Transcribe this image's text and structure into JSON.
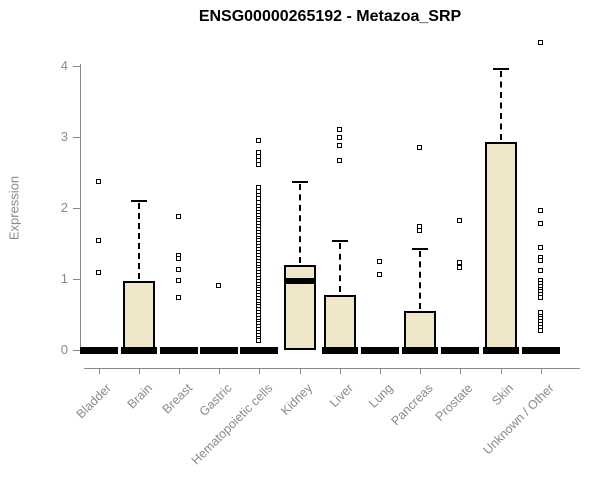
{
  "chart_data": {
    "type": "boxplot",
    "title": "ENSG00000265192 - Metazoa_SRP",
    "xlabel": "",
    "ylabel": "Expression",
    "ylim": [
      0,
      4.4
    ],
    "yticks": [
      0,
      1,
      2,
      3,
      4
    ],
    "grid": false,
    "legend": "none",
    "colors": {
      "box_fill": "#efe7c8",
      "box_border": "#000000",
      "median": "#000000",
      "outlier": "#000000",
      "axis": "#8a8a8a",
      "tick_label": "#8a8a8a",
      "title": "#000000"
    },
    "categories": [
      "Bladder",
      "Brain",
      "Breast",
      "Gastric",
      "Hematopoietic cells",
      "Kidney",
      "Liver",
      "Lung",
      "Pancreas",
      "Prostate",
      "Skin",
      "Unknown / Other"
    ],
    "boxes": [
      {
        "category": "Bladder",
        "q1": 0,
        "median": 0,
        "q3": 0,
        "whisker_low": 0,
        "whisker_high": 0,
        "outliers": [
          2.36,
          1.53,
          1.08
        ]
      },
      {
        "category": "Brain",
        "q1": 0,
        "median": 0,
        "q3": 0.97,
        "whisker_low": 0,
        "whisker_high": 2.1,
        "outliers": []
      },
      {
        "category": "Breast",
        "q1": 0,
        "median": 0,
        "q3": 0,
        "whisker_low": 0,
        "whisker_high": 0,
        "outliers": [
          1.88,
          1.32,
          1.28,
          1.13,
          0.97,
          0.73
        ]
      },
      {
        "category": "Gastric",
        "q1": 0,
        "median": 0,
        "q3": 0,
        "whisker_low": 0,
        "whisker_high": 0,
        "outliers": [
          0.9
        ]
      },
      {
        "category": "Hematopoietic cells",
        "q1": 0,
        "median": 0,
        "q3": 0,
        "whisker_low": 0,
        "whisker_high": 0,
        "outliers": [
          2.95,
          2.78,
          2.72,
          2.66,
          2.6,
          2.28,
          2.22,
          2.17,
          2.12,
          2.07,
          2.02,
          1.97,
          1.93,
          1.89,
          1.85,
          1.81,
          1.77,
          1.73,
          1.69,
          1.65,
          1.61,
          1.57,
          1.53,
          1.49,
          1.45,
          1.41,
          1.36,
          1.32,
          1.28,
          1.24,
          1.2,
          1.16,
          1.12,
          1.08,
          1.04,
          1.0,
          0.96,
          0.92,
          0.88,
          0.84,
          0.8,
          0.76,
          0.72,
          0.68,
          0.64,
          0.6,
          0.56,
          0.52,
          0.48,
          0.44,
          0.4,
          0.36,
          0.32,
          0.28,
          0.24,
          0.2,
          0.16,
          0.12
        ]
      },
      {
        "category": "Kidney",
        "q1": 0,
        "median": 0.97,
        "q3": 1.2,
        "whisker_low": 0,
        "whisker_high": 2.37,
        "outliers": []
      },
      {
        "category": "Liver",
        "q1": 0,
        "median": 0,
        "q3": 0.78,
        "whisker_low": 0,
        "whisker_high": 1.53,
        "outliers": [
          3.1,
          2.99,
          2.88,
          2.66
        ]
      },
      {
        "category": "Lung",
        "q1": 0,
        "median": 0,
        "q3": 0,
        "whisker_low": 0,
        "whisker_high": 0,
        "outliers": [
          1.24,
          1.06
        ]
      },
      {
        "category": "Pancreas",
        "q1": 0,
        "median": 0,
        "q3": 0.55,
        "whisker_low": 0,
        "whisker_high": 1.42,
        "outliers": [
          2.85,
          1.73,
          1.68
        ]
      },
      {
        "category": "Prostate",
        "q1": 0,
        "median": 0,
        "q3": 0,
        "whisker_low": 0,
        "whisker_high": 0,
        "outliers": [
          1.81,
          1.22,
          1.16
        ]
      },
      {
        "category": "Skin",
        "q1": 0,
        "median": 0,
        "q3": 2.93,
        "whisker_low": 0,
        "whisker_high": 3.96,
        "outliers": []
      },
      {
        "category": "Unknown / Other",
        "q1": 0,
        "median": 0,
        "q3": 0,
        "whisker_low": 0,
        "whisker_high": 0,
        "outliers": [
          4.32,
          1.96,
          1.77,
          1.43,
          1.3,
          1.25,
          1.11,
          0.97,
          0.93,
          0.89,
          0.85,
          0.81,
          0.77,
          0.73,
          0.52,
          0.47,
          0.43,
          0.39,
          0.35,
          0.31,
          0.27
        ]
      }
    ]
  }
}
